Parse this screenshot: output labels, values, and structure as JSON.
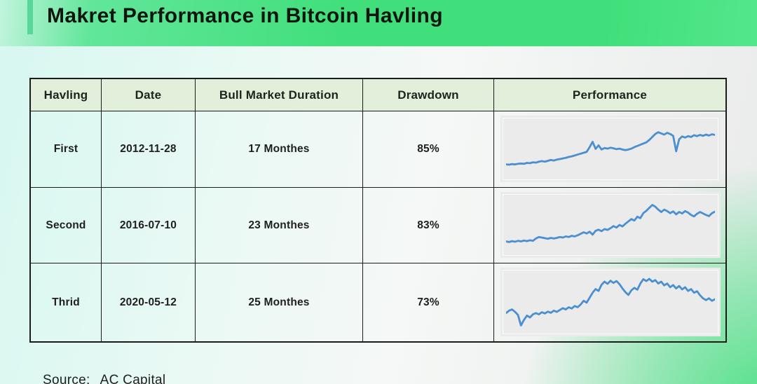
{
  "title": "Makret Performance in Bitcoin Havling",
  "source": {
    "label": "Source:",
    "value": "AC Capital"
  },
  "colors": {
    "band_green": "#41df7b",
    "band_light_left": "#c2f4dd",
    "accent_bar_green": "#58d79a",
    "header_bg": "#e2efda",
    "table_border": "#1c1c1c",
    "sparkline_panel_bg": "#ebebeb",
    "sparkline_blue": "#4a8fd0",
    "bg_cyan_left": "#d6f7f0",
    "bg_gray_right": "#e9eaea",
    "bg_corner_green": "#3ee07c"
  },
  "chart_data": {
    "type": "table",
    "title": "Makret Performance in Bitcoin Havling",
    "columns": [
      "Havling",
      "Date",
      "Bull Market Duration",
      "Drawdown",
      "Performance"
    ],
    "rows": [
      [
        "First",
        "2012-11-28",
        "17 Monthes",
        "85%"
      ],
      [
        "Second",
        "2016-07-10",
        "23 Monthes",
        "83%"
      ],
      [
        "Thrid",
        "2020-05-12",
        "25 Monthes",
        "73%"
      ]
    ],
    "line_color": "#4a8fd0",
    "axes": "hidden",
    "grid": false,
    "sparklines": [
      {
        "type": "line",
        "name": "first-havling-performance",
        "y_percent_from_top": [
          76,
          76.5,
          75.5,
          76,
          75,
          74.5,
          75,
          73.5,
          74,
          72.5,
          73,
          71.5,
          70.5,
          71.5,
          70,
          68.5,
          69.5,
          68,
          67,
          66,
          65,
          63.5,
          62.5,
          61,
          59.5,
          58,
          56.5,
          55,
          47,
          38,
          50,
          44,
          51,
          48.5,
          49.5,
          48,
          49,
          50.5,
          49.5,
          51,
          52,
          51,
          49.5,
          47,
          45,
          43,
          41,
          39,
          35,
          30,
          25,
          22,
          24,
          26,
          23,
          25,
          28,
          54,
          34,
          29,
          31,
          28.5,
          30,
          27,
          28.5,
          26.5,
          28,
          26,
          27.5,
          25.5,
          26.5
        ]
      },
      {
        "type": "line",
        "name": "second-havling-performance",
        "y_percent_from_top": [
          78,
          79,
          77.5,
          78.5,
          77,
          78,
          76.5,
          77.5,
          76,
          77,
          73,
          70.5,
          71.5,
          72.5,
          73.5,
          72,
          73,
          72,
          70.5,
          71.5,
          69.5,
          70.5,
          68.5,
          69.5,
          67.5,
          65,
          62.5,
          64.5,
          61.5,
          66.5,
          60,
          58,
          60.5,
          57,
          58.5,
          55.5,
          52,
          54.5,
          50,
          52.5,
          48,
          44,
          40,
          42.5,
          36,
          38.5,
          30,
          26,
          21,
          16,
          19,
          24,
          28,
          24,
          26.5,
          30,
          27,
          32,
          28,
          30.5,
          26.5,
          29,
          33,
          35.5,
          31,
          28,
          30.5,
          33,
          35,
          30,
          27.5
        ]
      },
      {
        "type": "line",
        "name": "third-havling-performance",
        "y_percent_from_top": [
          68,
          64,
          62,
          66,
          71,
          88,
          79,
          72,
          75,
          70,
          68,
          70,
          66.5,
          68.5,
          65.5,
          67.5,
          64,
          66,
          63,
          60,
          62,
          58.5,
          60.5,
          56.5,
          58.5,
          54,
          48,
          51,
          43,
          35,
          29,
          32,
          22,
          17,
          20.5,
          15.5,
          19,
          16,
          21,
          28,
          34,
          38.5,
          31,
          27,
          30,
          20,
          13,
          16,
          12.5,
          17,
          14.5,
          20,
          17,
          23,
          20,
          26,
          22.5,
          28,
          24,
          29.5,
          26,
          32,
          29,
          35,
          32.5,
          39,
          44,
          47,
          44,
          48,
          45.5
        ]
      }
    ]
  }
}
